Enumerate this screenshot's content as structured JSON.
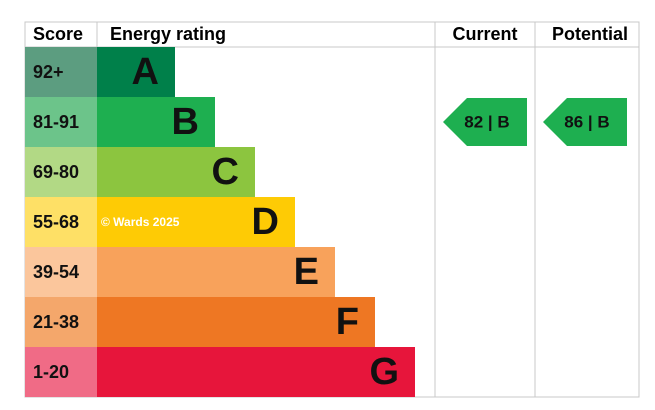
{
  "headers": {
    "score": "Score",
    "rating": "Energy rating",
    "current": "Current",
    "potential": "Potential"
  },
  "bands": [
    {
      "range": "92+",
      "letter": "A",
      "color": "#00804a",
      "light": "#5c9d80"
    },
    {
      "range": "81-91",
      "letter": "B",
      "color": "#1eaf50",
      "light": "#6cc48a"
    },
    {
      "range": "69-80",
      "letter": "C",
      "color": "#8cc53f",
      "light": "#b2d985"
    },
    {
      "range": "55-68",
      "letter": "D",
      "color": "#fecb05",
      "light": "#fee066"
    },
    {
      "range": "39-54",
      "letter": "E",
      "color": "#f8a25b",
      "light": "#fbc69c"
    },
    {
      "range": "21-38",
      "letter": "F",
      "color": "#ee7723",
      "light": "#f4a76b"
    },
    {
      "range": "1-20",
      "letter": "G",
      "color": "#e7153b",
      "light": "#f06b86"
    }
  ],
  "current": {
    "label": "82 | B",
    "band": 1
  },
  "potential": {
    "label": "86 | B",
    "band": 1
  },
  "watermark": "© Wards 2025"
}
